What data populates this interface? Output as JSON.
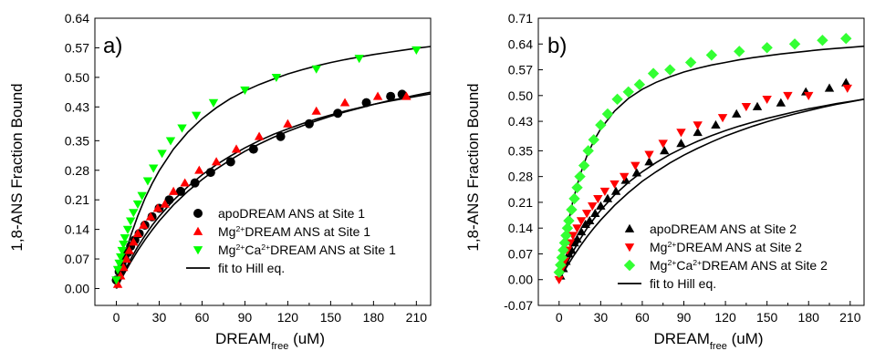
{
  "chart_data": [
    {
      "type": "scatter",
      "panel_label": "a)",
      "ylabel": "1,8-ANS  Fraction Bound",
      "xlabel_main": "DREAM",
      "xlabel_sub": "free",
      "xlabel_unit": "(uM)",
      "xlim": [
        -15,
        220
      ],
      "ylim": [
        -0.04,
        0.64
      ],
      "xticks": [
        0,
        30,
        60,
        90,
        120,
        150,
        180,
        210
      ],
      "xtick_labels": [
        "0",
        "30",
        "60",
        "90",
        "120",
        "150",
        "180",
        "210"
      ],
      "yticks": [
        0.0,
        0.07,
        0.14,
        0.21,
        0.28,
        0.35,
        0.43,
        0.5,
        0.57,
        0.64
      ],
      "ytick_labels": [
        "0.00",
        "0.07",
        "0.14",
        "0.21",
        "0.28",
        "0.35",
        "0.43",
        "0.50",
        "0.57",
        "0.64"
      ],
      "legend_position": "bottom-right",
      "series": [
        {
          "legend_parts": [
            "apoDREAM ANS at Site 1"
          ],
          "marker": "circle",
          "color": "#000000",
          "x": [
            0,
            2,
            4,
            6,
            8,
            10,
            13,
            16,
            20,
            25,
            30,
            37,
            45,
            55,
            66,
            80,
            96,
            115,
            135,
            155,
            175,
            192,
            200
          ],
          "y": [
            0.02,
            0.04,
            0.055,
            0.07,
            0.085,
            0.1,
            0.115,
            0.13,
            0.15,
            0.17,
            0.19,
            0.21,
            0.23,
            0.25,
            0.275,
            0.3,
            0.33,
            0.36,
            0.39,
            0.415,
            0.44,
            0.455,
            0.46
          ],
          "fit_y": [
            0.0,
            0.032,
            0.062,
            0.09,
            0.115,
            0.138,
            0.16,
            0.198,
            0.23,
            0.258,
            0.283,
            0.305,
            0.325,
            0.342,
            0.358,
            0.372,
            0.385,
            0.397,
            0.408,
            0.418,
            0.427,
            0.436,
            0.444,
            0.451,
            0.458,
            0.465
          ]
        },
        {
          "legend_parts": [
            "Mg",
            "2+",
            "DREAM ANS at Site 1"
          ],
          "marker": "triangle-up",
          "color": "#ff0000",
          "x": [
            1,
            3,
            5,
            7,
            9,
            12,
            15,
            19,
            24,
            29,
            34,
            40,
            48,
            58,
            70,
            84,
            100,
            120,
            140,
            160,
            183,
            203
          ],
          "y": [
            0.01,
            0.03,
            0.05,
            0.07,
            0.09,
            0.11,
            0.13,
            0.15,
            0.17,
            0.19,
            0.2,
            0.23,
            0.25,
            0.28,
            0.3,
            0.33,
            0.36,
            0.39,
            0.42,
            0.44,
            0.455,
            0.455
          ],
          "fit_y": [
            0.0,
            0.036,
            0.069,
            0.099,
            0.125,
            0.149,
            0.171,
            0.209,
            0.241,
            0.269,
            0.293,
            0.314,
            0.333,
            0.35,
            0.365,
            0.378,
            0.39,
            0.401,
            0.411,
            0.42,
            0.428,
            0.436,
            0.443,
            0.449,
            0.455,
            0.461
          ]
        },
        {
          "legend_parts": [
            "Mg",
            "2+",
            "Ca",
            "2+",
            "DREAM ANS at Site 1"
          ],
          "marker": "triangle-down",
          "color": "#00ff00",
          "x": [
            0,
            1,
            2,
            3,
            4,
            5,
            6,
            8,
            10,
            12,
            15,
            18,
            22,
            26,
            32,
            38,
            46,
            56,
            68,
            90,
            112,
            140,
            170,
            210
          ],
          "y": [
            0.02,
            0.045,
            0.06,
            0.075,
            0.09,
            0.105,
            0.12,
            0.14,
            0.16,
            0.18,
            0.2,
            0.22,
            0.255,
            0.285,
            0.32,
            0.35,
            0.38,
            0.41,
            0.44,
            0.47,
            0.5,
            0.52,
            0.545,
            0.565
          ],
          "fit_y": [
            0.0,
            0.067,
            0.124,
            0.172,
            0.213,
            0.248,
            0.279,
            0.33,
            0.37,
            0.402,
            0.428,
            0.45,
            0.468,
            0.483,
            0.496,
            0.508,
            0.518,
            0.527,
            0.535,
            0.542,
            0.548,
            0.554,
            0.559,
            0.564,
            0.569,
            0.573
          ]
        }
      ],
      "fit_x": [
        0,
        5,
        10,
        15,
        20,
        25,
        30,
        40,
        50,
        60,
        70,
        80,
        90,
        100,
        110,
        120,
        130,
        140,
        150,
        160,
        170,
        180,
        190,
        200,
        210,
        220
      ],
      "fit_legend": "fit to Hill eq."
    },
    {
      "type": "scatter",
      "panel_label": "b)",
      "ylabel": "1,8-ANS Fraction Bound",
      "xlabel_main": "DREAM",
      "xlabel_sub": "free",
      "xlabel_unit": "(uM)",
      "xlim": [
        -15,
        220
      ],
      "ylim": [
        -0.07,
        0.71
      ],
      "xticks": [
        0,
        30,
        60,
        90,
        120,
        150,
        180,
        210
      ],
      "xtick_labels": [
        "0",
        "30",
        "60",
        "90",
        "120",
        "150",
        "180",
        "210"
      ],
      "yticks": [
        -0.07,
        0.0,
        0.07,
        0.14,
        0.21,
        0.28,
        0.35,
        0.43,
        0.5,
        0.57,
        0.64,
        0.71
      ],
      "ytick_labels": [
        "-0.07",
        "0.00",
        "0.07",
        "0.14",
        "0.21",
        "0.28",
        "0.35",
        "0.43",
        "0.50",
        "0.57",
        "0.64",
        "0.71"
      ],
      "legend_position": "bottom-right",
      "series": [
        {
          "legend_parts": [
            "apoDREAM ANS at Site 2"
          ],
          "marker": "triangle-up",
          "color": "#000000",
          "x": [
            1,
            3,
            5,
            7,
            9,
            11,
            13,
            16,
            19,
            22,
            26,
            30,
            35,
            41,
            48,
            56,
            65,
            76,
            88,
            100,
            113,
            128,
            143,
            160,
            178,
            195,
            207
          ],
          "y": [
            0.01,
            0.03,
            0.05,
            0.07,
            0.08,
            0.1,
            0.11,
            0.13,
            0.15,
            0.16,
            0.18,
            0.2,
            0.22,
            0.24,
            0.27,
            0.29,
            0.32,
            0.35,
            0.37,
            0.4,
            0.42,
            0.45,
            0.47,
            0.48,
            0.51,
            0.52,
            0.535
          ],
          "fit_y": [
            0.0,
            0.032,
            0.062,
            0.09,
            0.116,
            0.14,
            0.162,
            0.202,
            0.236,
            0.267,
            0.293,
            0.317,
            0.338,
            0.357,
            0.374,
            0.39,
            0.404,
            0.417,
            0.429,
            0.44,
            0.45,
            0.459,
            0.468,
            0.476,
            0.483,
            0.49
          ]
        },
        {
          "legend_parts": [
            "Mg",
            "2+",
            "DREAM ANS at Site 2"
          ],
          "marker": "triangle-down",
          "color": "#ff0000",
          "x": [
            0,
            2,
            4,
            6,
            8,
            10,
            13,
            16,
            20,
            24,
            28,
            33,
            40,
            47,
            55,
            65,
            75,
            88,
            100,
            118,
            135,
            150,
            165,
            180,
            208
          ],
          "y": [
            0.0,
            0.03,
            0.05,
            0.08,
            0.1,
            0.12,
            0.14,
            0.16,
            0.18,
            0.2,
            0.22,
            0.24,
            0.26,
            0.28,
            0.31,
            0.34,
            0.37,
            0.4,
            0.42,
            0.44,
            0.47,
            0.49,
            0.5,
            0.5,
            0.52
          ],
          "fit_y": [
            0.0,
            0.04,
            0.076,
            0.109,
            0.139,
            0.165,
            0.189,
            0.23,
            0.264,
            0.293,
            0.318,
            0.34,
            0.359,
            0.376,
            0.391,
            0.405,
            0.417,
            0.428,
            0.438,
            0.447,
            0.456,
            0.464,
            0.471,
            0.478,
            0.484,
            0.49
          ]
        },
        {
          "legend_parts": [
            "Mg",
            "2+",
            "Ca",
            "2+",
            "DREAM ANS at Site 2"
          ],
          "marker": "diamond",
          "color": "#33ff33",
          "x": [
            0,
            1,
            2,
            3,
            4,
            5,
            6,
            7,
            9,
            11,
            13,
            15,
            18,
            21,
            25,
            30,
            35,
            42,
            50,
            58,
            68,
            80,
            95,
            110,
            130,
            150,
            170,
            190,
            207
          ],
          "y": [
            0.02,
            0.04,
            0.06,
            0.08,
            0.1,
            0.12,
            0.14,
            0.16,
            0.19,
            0.22,
            0.25,
            0.28,
            0.31,
            0.35,
            0.38,
            0.42,
            0.45,
            0.49,
            0.51,
            0.53,
            0.56,
            0.57,
            0.59,
            0.61,
            0.62,
            0.63,
            0.64,
            0.65,
            0.655
          ],
          "fit_y": [
            0.0,
            0.124,
            0.215,
            0.283,
            0.336,
            0.377,
            0.41,
            0.458,
            0.492,
            0.517,
            0.536,
            0.551,
            0.564,
            0.574,
            0.583,
            0.59,
            0.597,
            0.603,
            0.608,
            0.613,
            0.617,
            0.621,
            0.625,
            0.628,
            0.631,
            0.634
          ]
        }
      ],
      "fit_x": [
        0,
        5,
        10,
        15,
        20,
        25,
        30,
        40,
        50,
        60,
        70,
        80,
        90,
        100,
        110,
        120,
        130,
        140,
        150,
        160,
        170,
        180,
        190,
        200,
        210,
        220
      ],
      "fit_legend": "fit to Hill eq."
    }
  ]
}
